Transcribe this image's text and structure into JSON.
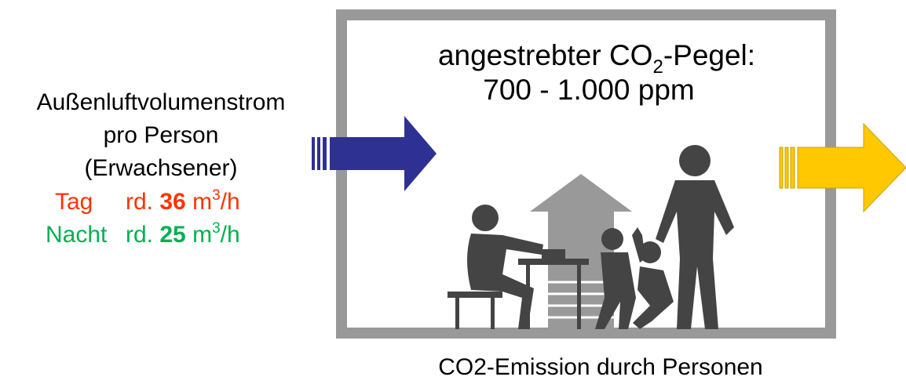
{
  "left": {
    "lines": [
      "Außenluftvolumenstrom",
      "pro Person",
      "(Erwachsener)"
    ],
    "day": {
      "label": "Tag",
      "prefix": "rd.",
      "value": "36",
      "unit": "m",
      "sup": "3",
      "suffix": "/h"
    },
    "night": {
      "label": "Nacht",
      "prefix": "rd.",
      "value": "25",
      "unit": "m",
      "sup": "3",
      "suffix": "/h"
    }
  },
  "room": {
    "title": "angestrebter CO",
    "title_sub": "2",
    "title_rest": "-Pegel:",
    "range": "700 - 1.000 ppm"
  },
  "caption": "CO2-Emission durch Personen"
}
